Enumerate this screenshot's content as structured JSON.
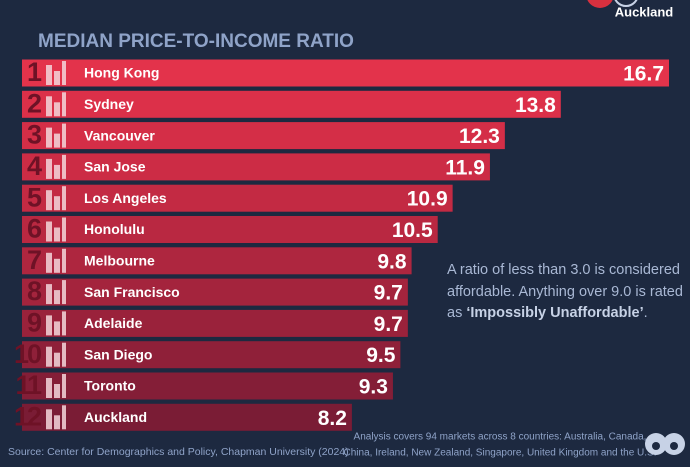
{
  "chart_data": {
    "type": "bar",
    "orientation": "horizontal",
    "title": "MEDIAN PRICE-TO-INCOME RATIO",
    "header_city": "Auckland",
    "ranks": [
      "1",
      "2",
      "3",
      "4",
      "5",
      "6",
      "7",
      "8",
      "9",
      "10",
      "11",
      "12"
    ],
    "categories": [
      "Hong Kong",
      "Sydney",
      "Vancouver",
      "San Jose",
      "Los Angeles",
      "Honolulu",
      "Melbourne",
      "San Francisco",
      "Adelaide",
      "San Diego",
      "Toronto",
      "Auckland"
    ],
    "values": [
      16.7,
      13.8,
      12.3,
      11.9,
      10.9,
      10.5,
      9.8,
      9.7,
      9.7,
      9.5,
      9.3,
      8.2
    ],
    "colors": [
      "#e3334b",
      "#dc3049",
      "#d42e47",
      "#cc2c45",
      "#c32a43",
      "#b92841",
      "#ae263f",
      "#a4243d",
      "#9a223b",
      "#8f2039",
      "#841e37",
      "#7a1c35"
    ],
    "annotation": [
      "A ratio of less than 3.0 is considered",
      "affordable. Anything over 9.0 is rated",
      "as ",
      "‘Impossibly Unaffordable’",
      "."
    ],
    "source": "Source: Center for Demographics and Policy, Chapman University (2024)",
    "note": [
      "Analysis covers 94 markets across 8 countries: Australia, Canada,",
      "China, Ireland, New Zealand, Singapore, United Kingdom and the U.S."
    ]
  }
}
